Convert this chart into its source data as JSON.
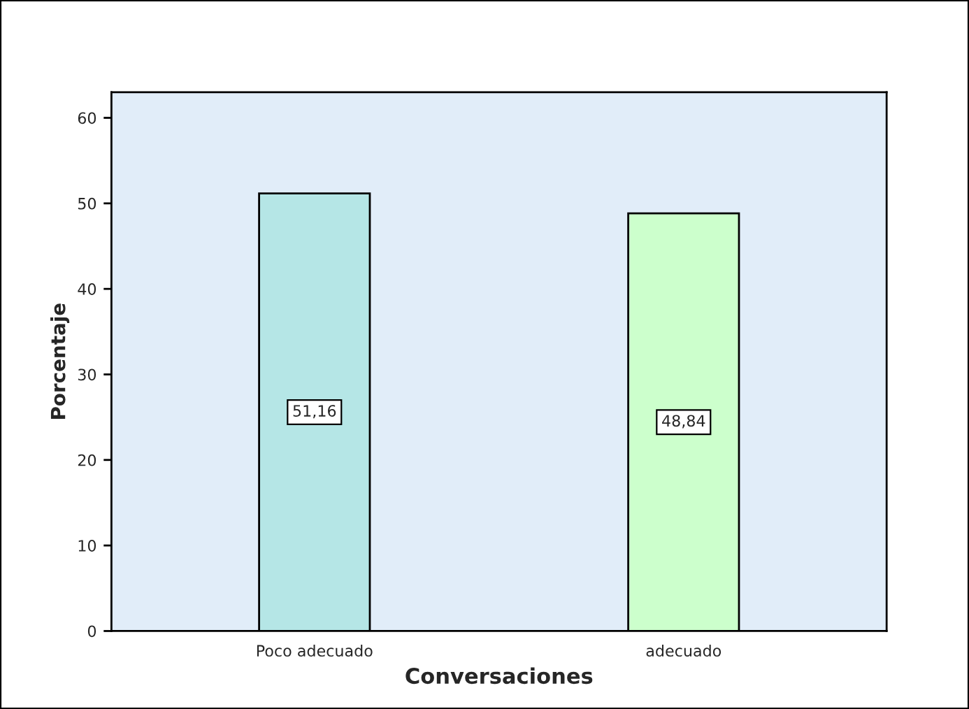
{
  "chart_data": {
    "type": "bar",
    "xlabel": "Conversaciones",
    "ylabel": "Porcentaje",
    "categories": [
      "Poco adecuado",
      "adecuado"
    ],
    "values": [
      51.16,
      48.84
    ],
    "colors": [
      "#b5e6e6",
      "#ccffcc"
    ],
    "value_labels": [
      "51,16",
      "48,84"
    ],
    "ylim": [
      0,
      63
    ],
    "yticks": [
      0,
      10,
      20,
      30,
      40,
      50,
      60
    ],
    "grid": false,
    "legend": false
  }
}
